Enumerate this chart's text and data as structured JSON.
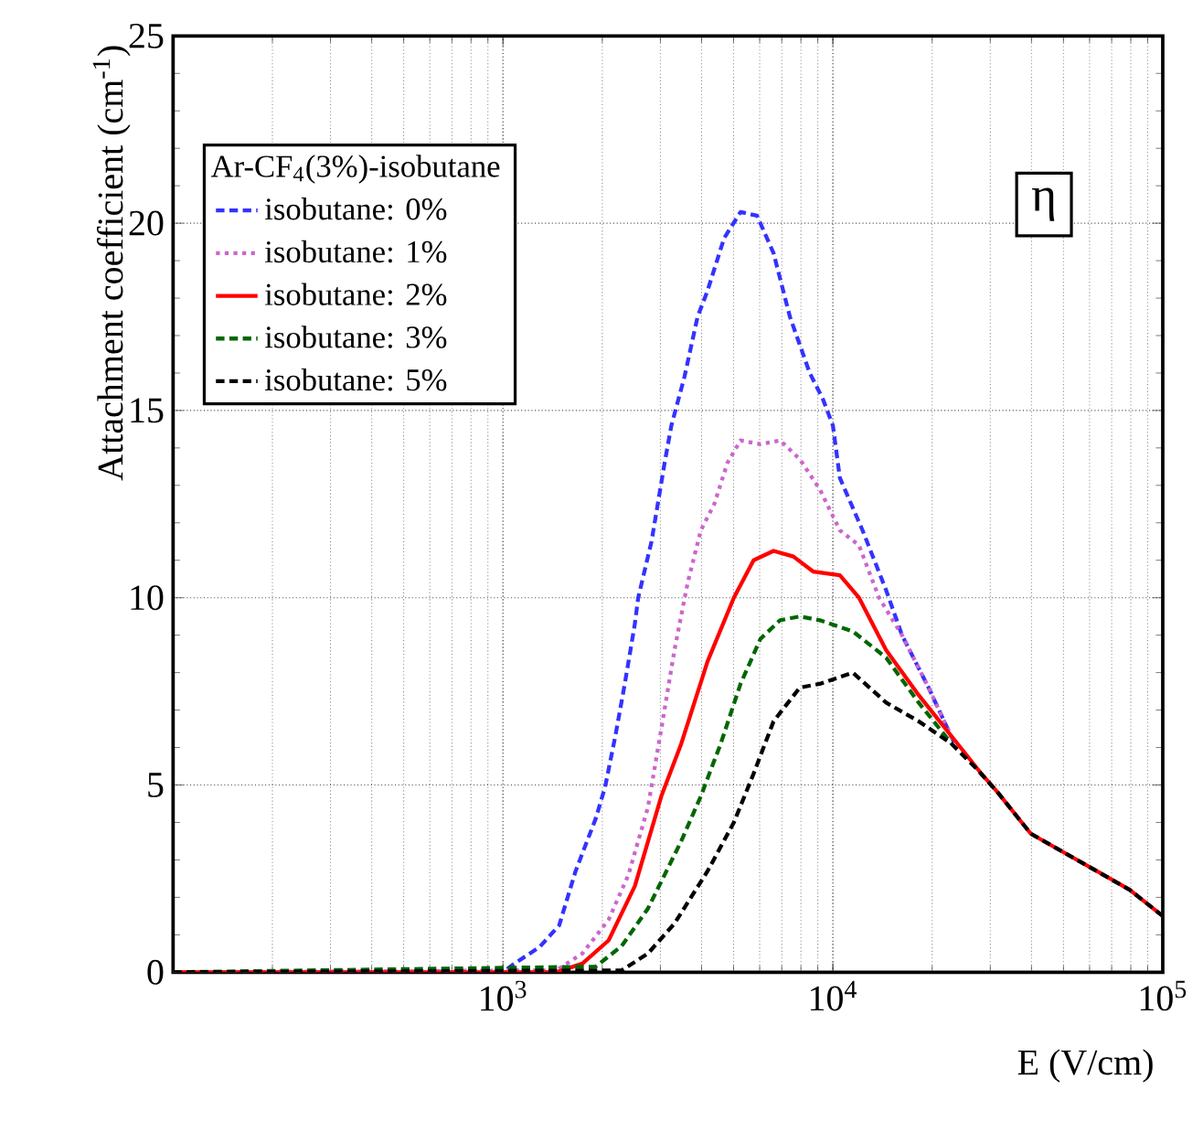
{
  "chart_data": {
    "type": "line",
    "xlabel": "E (V/cm)",
    "ylabel": "Attachment coefficient (cm$^{-1}$)",
    "legend_title": "Ar-CF$_{4}$(3%)-isobutane",
    "log": "x",
    "xlim": [
      100,
      100000
    ],
    "xticks": [
      {
        "value": 100,
        "label": null
      },
      {
        "value": 1000,
        "label": "10$^{3}$"
      },
      {
        "value": 10000,
        "label": "10$^{4}$"
      },
      {
        "value": 100000,
        "label": "10$^{5}$"
      }
    ],
    "ylim": [
      0,
      25
    ],
    "yticks": [
      0,
      5,
      10,
      15,
      20,
      25
    ],
    "grid": true,
    "legend": "top left",
    "annotations": [
      "η"
    ],
    "series": [
      {
        "name": "isobutane: 0%",
        "color": "#3333ff",
        "line_style": "dashed",
        "x": [
          100,
          1000,
          1070,
          1290,
          1480,
          1660,
          1910,
          2040,
          2190,
          2340,
          2510,
          2570,
          2820,
          3090,
          3240,
          3550,
          3890,
          4170,
          4680,
          5250,
          5890,
          6610,
          7410,
          8510,
          9330,
          10000,
          10500,
          12300,
          14500,
          16200,
          19500,
          23400
        ],
        "values": [
          0,
          0,
          0.2,
          0.67,
          1.25,
          2.7,
          4.1,
          4.95,
          6.3,
          7.7,
          9.3,
          10.0,
          11.5,
          13.6,
          14.6,
          15.9,
          17.5,
          18.2,
          19.6,
          20.3,
          20.2,
          19.2,
          17.5,
          16.0,
          15.3,
          14.6,
          13.2,
          11.8,
          10.2,
          9.0,
          7.6,
          6.1
        ]
      },
      {
        "name": "isobutane: 1%",
        "color": "#cc66cc",
        "line_style": "dotted",
        "x": [
          100,
          1450,
          1740,
          2090,
          2400,
          2750,
          3020,
          3310,
          3630,
          3980,
          4370,
          4790,
          5250,
          6030,
          6920,
          7940,
          9120,
          10500,
          12000,
          13800,
          16200,
          19500,
          23400
        ],
        "values": [
          0,
          0.05,
          0.5,
          1.4,
          2.6,
          4.4,
          6.5,
          8.6,
          10.4,
          11.8,
          12.5,
          13.6,
          14.2,
          14.1,
          14.2,
          13.7,
          12.9,
          11.8,
          11.4,
          10.0,
          9.0,
          7.6,
          6.1
        ]
      },
      {
        "name": "isobutane: 2%",
        "color": "#ff0000",
        "line_style": "solid",
        "x": [
          100,
          1450,
          1740,
          2090,
          2510,
          3020,
          3470,
          4170,
          5010,
          5750,
          6610,
          7590,
          8710,
          10500,
          12000,
          14500,
          18200,
          22900,
          28200,
          31600,
          39800,
          50100,
          63100,
          79400,
          100000
        ],
        "values": [
          0,
          0,
          0.23,
          0.85,
          2.3,
          4.7,
          6.1,
          8.3,
          10.0,
          11.0,
          11.25,
          11.1,
          10.7,
          10.6,
          10.0,
          8.6,
          7.4,
          6.3,
          5.3,
          4.8,
          3.7,
          3.2,
          2.7,
          2.2,
          1.5
        ]
      },
      {
        "name": "isobutane: 3%",
        "color": "#006600",
        "line_style": "dashed",
        "x": [
          100,
          1910,
          2290,
          2750,
          3470,
          3980,
          4570,
          5250,
          6030,
          6920,
          7940,
          9120,
          11500,
          14500,
          18200,
          22900
        ],
        "values": [
          0,
          0.15,
          0.7,
          1.7,
          3.5,
          4.7,
          6.1,
          7.7,
          8.9,
          9.4,
          9.5,
          9.4,
          9.1,
          8.4,
          7.2,
          6.1
        ]
      },
      {
        "name": "isobutane: 5%",
        "color": "#000000",
        "line_style": "dashed",
        "x": [
          100,
          2290,
          2750,
          3310,
          4170,
          5010,
          5750,
          6610,
          7940,
          9120,
          11500,
          14500,
          18200,
          22900,
          27500,
          31600,
          39800,
          50100,
          63100,
          79400,
          100000
        ],
        "values": [
          0,
          0.05,
          0.5,
          1.3,
          2.7,
          4.0,
          5.3,
          6.7,
          7.6,
          7.7,
          8.0,
          7.2,
          6.7,
          6.1,
          5.4,
          4.8,
          3.7,
          3.2,
          2.7,
          2.2,
          1.5
        ]
      }
    ]
  }
}
